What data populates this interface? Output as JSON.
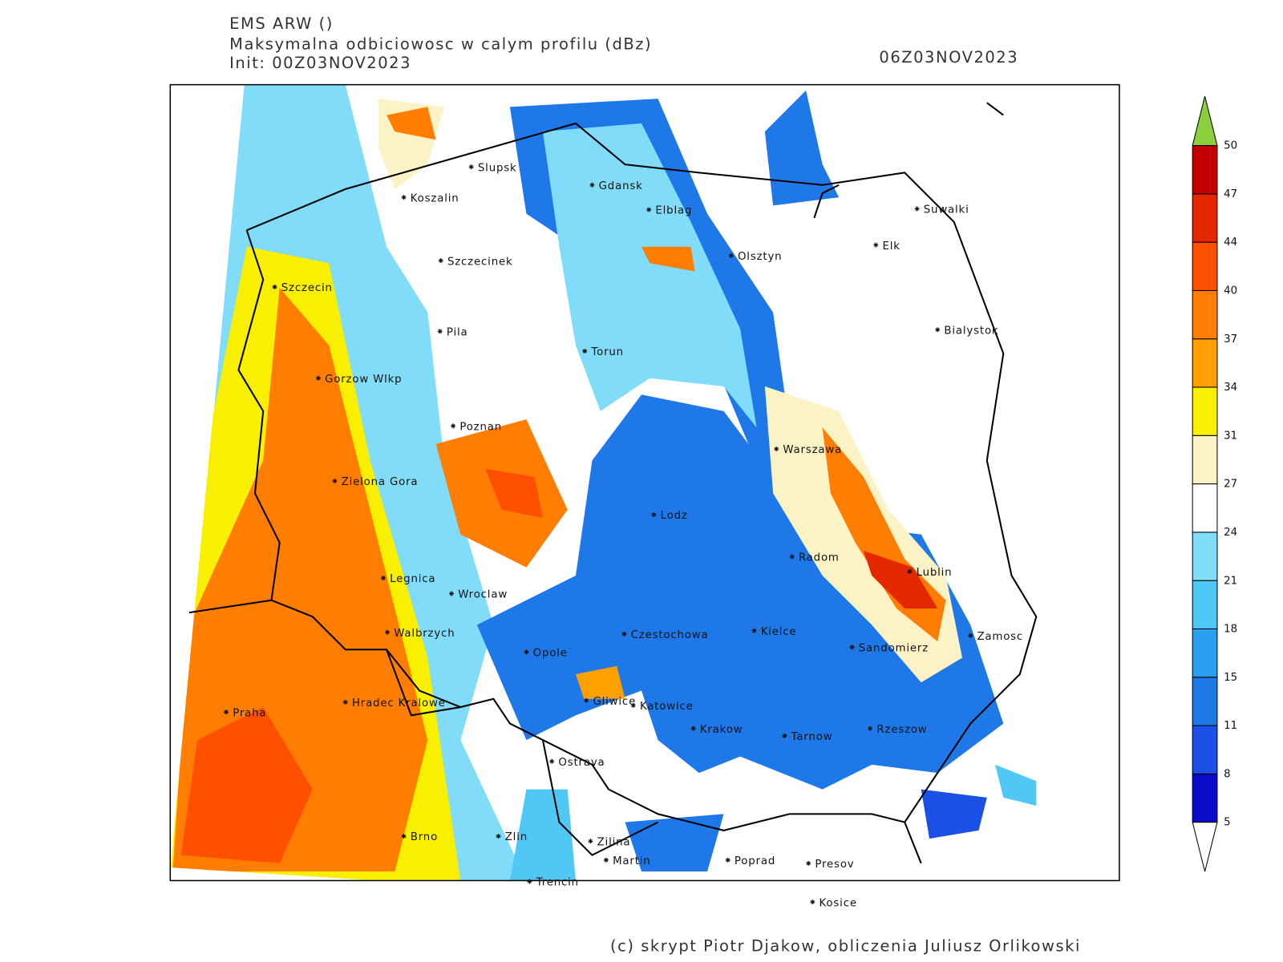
{
  "header": {
    "model": "EMS ARW ()",
    "field": "Maksymalna odbiciowosc w calym profilu (dBz)",
    "init": "Init: 00Z03NOV2023",
    "valid": "06Z03NOV2023"
  },
  "colorbar": {
    "levels": [
      5,
      8,
      11,
      15,
      18,
      21,
      24,
      27,
      31,
      34,
      37,
      40,
      44,
      47,
      50
    ],
    "colors": [
      "#0a0ac8",
      "#1a50e6",
      "#1e78e8",
      "#2aa0f0",
      "#50c8f5",
      "#80dcf8",
      "#ffffff",
      "#fbf3c6",
      "#f8f000",
      "#ffa000",
      "#ff7d00",
      "#ff5000",
      "#e32800",
      "#c40000"
    ],
    "below_color": "#ffffff",
    "above_color": "#8ccf3c"
  },
  "cities": [
    "Slupsk",
    "Koszalin",
    "Gdansk",
    "Elblag",
    "Suwalki",
    "Elk",
    "Olsztyn",
    "Szczecinek",
    "Szczecin",
    "Bialystok",
    "Pila",
    "Torun",
    "Gorzow Wlkp",
    "Poznan",
    "Warszawa",
    "Zielona Gora",
    "Lodz",
    "Radom",
    "Lublin",
    "Legnica",
    "Wroclaw",
    "Czestochowa",
    "Kielce",
    "Walbrzych",
    "Zamosc",
    "Opole",
    "Sandomierz",
    "Gliwice",
    "Katowice",
    "Hradec Kralowe",
    "Praha",
    "Krakow",
    "Rzeszow",
    "Tarnow",
    "Ostrava",
    "Brno",
    "Zlin",
    "Zilina",
    "Martin",
    "Poprad",
    "Presov",
    "Trencin",
    "Kosice"
  ],
  "footer": "(c) skrypt Piotr Djakow, obliczenia Juliusz Orlikowski"
}
